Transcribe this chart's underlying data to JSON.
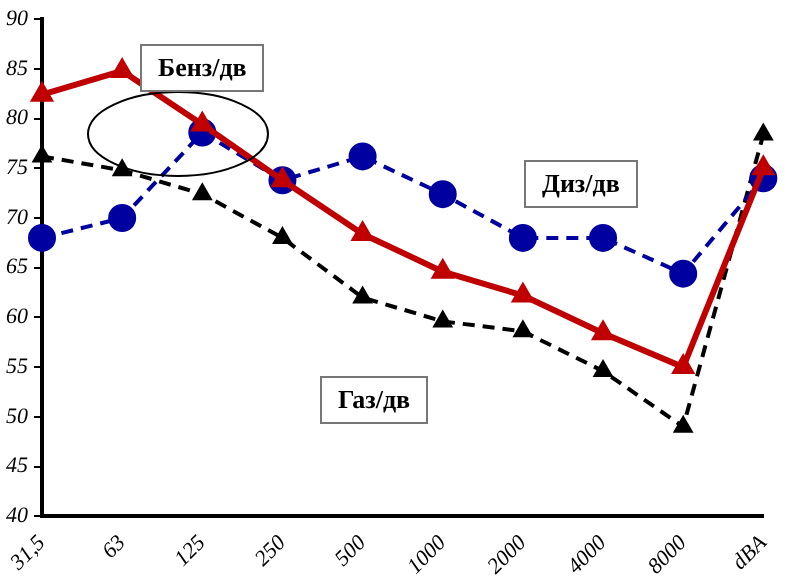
{
  "chart_data": {
    "type": "line",
    "categories": [
      "31,5",
      "63",
      "125",
      "250",
      "500",
      "1000",
      "2000",
      "4000",
      "8000",
      "dBA"
    ],
    "series": [
      {
        "color": "#c00000",
        "marker": "triangle",
        "line_style": "solid",
        "values": [
          82.4,
          84.8,
          79.4,
          73.8,
          68.4,
          64.6,
          62.2,
          58.4,
          55,
          75
        ]
      },
      {
        "color": "#0000a0",
        "marker": "circle",
        "line_style": "dashed",
        "values": [
          68,
          70,
          78.6,
          73.8,
          76.2,
          72.4,
          68,
          68,
          64.4,
          74
        ]
      },
      {
        "color": "#000000",
        "marker": "triangle",
        "line_style": "dashed",
        "values": [
          76.2,
          74.8,
          72.4,
          68,
          62,
          59.6,
          58.6,
          54.6,
          49,
          78.4
        ]
      }
    ],
    "ylim": [
      40,
      90
    ],
    "yticks": [
      40,
      45,
      50,
      55,
      60,
      65,
      70,
      75,
      80,
      85,
      90
    ],
    "grid": false,
    "legend": false,
    "annotations": [
      "Бенз/дв",
      "Диз/дв",
      "Газ/дв"
    ]
  }
}
